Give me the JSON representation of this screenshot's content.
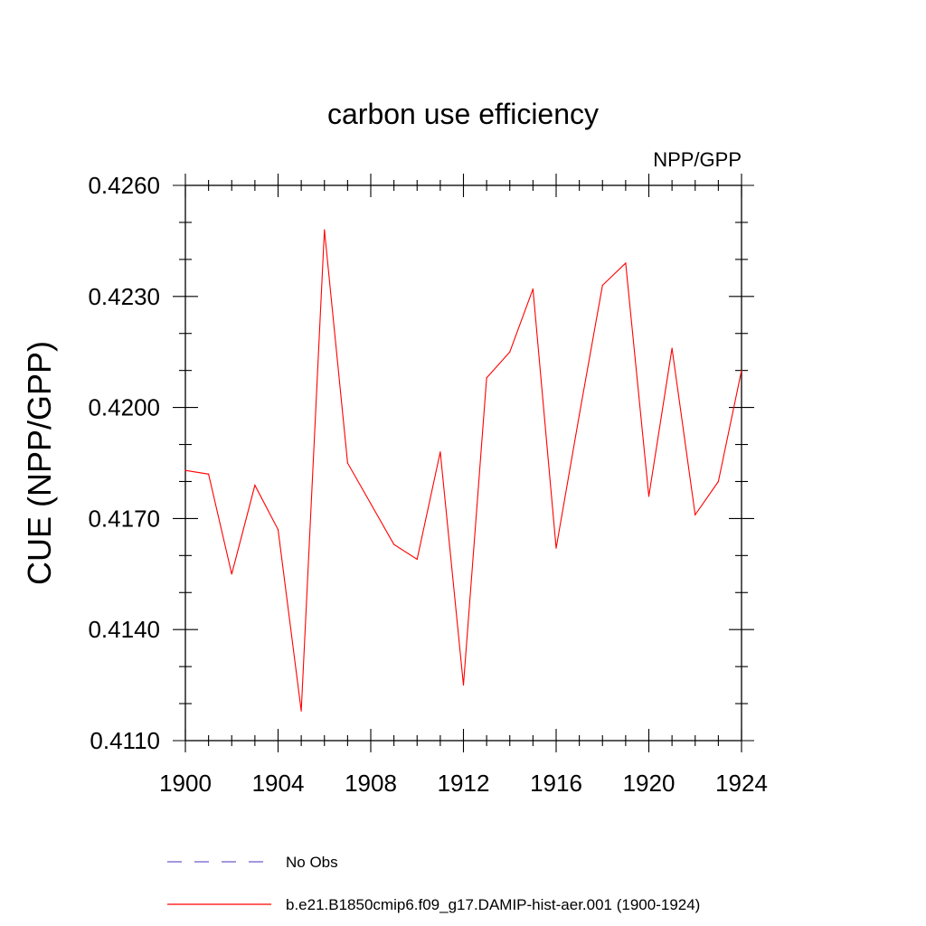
{
  "chart_data": {
    "type": "line",
    "title": "carbon use efficiency",
    "right_string": "NPP/GPP",
    "xlabel": "",
    "ylabel": "CUE  (NPP/GPP)",
    "xlim": [
      1900,
      1924
    ],
    "ylim": [
      0.411,
      0.426
    ],
    "x_ticks": [
      1900,
      1904,
      1908,
      1912,
      1916,
      1920,
      1924
    ],
    "x_tick_labels": [
      "1900",
      "1904",
      "1908",
      "1912",
      "1916",
      "1920",
      "1924"
    ],
    "y_ticks": [
      0.411,
      0.414,
      0.417,
      0.42,
      0.423,
      0.426
    ],
    "y_tick_labels": [
      "0.4110",
      "0.4140",
      "0.4170",
      "0.4200",
      "0.4230",
      "0.4260"
    ],
    "grid": false,
    "legend_position": "bottom",
    "series": [
      {
        "name": "b.e21.B1850cmip6.f09_g17.DAMIP-hist-aer.001 (1900-1924)",
        "color": "#ff0000",
        "style": "solid",
        "x": [
          1900,
          1901,
          1902,
          1903,
          1904,
          1905,
          1906,
          1907,
          1908,
          1909,
          1910,
          1911,
          1912,
          1913,
          1914,
          1915,
          1916,
          1917,
          1918,
          1919,
          1920,
          1921,
          1922,
          1923,
          1924
        ],
        "y": [
          0.4183,
          0.4182,
          0.4155,
          0.4179,
          0.4167,
          0.4118,
          0.4248,
          0.4185,
          0.4174,
          0.4163,
          0.4159,
          0.4188,
          0.4125,
          0.4208,
          0.4215,
          0.4232,
          0.4162,
          0.4198,
          0.4233,
          0.4239,
          0.4176,
          0.4216,
          0.4171,
          0.418,
          0.421
        ]
      }
    ],
    "legend": [
      {
        "label": "No Obs",
        "color": "#6a5acd",
        "style": "dashed"
      },
      {
        "label": "b.e21.B1850cmip6.f09_g17.DAMIP-hist-aer.001 (1900-1924)",
        "color": "#ff0000",
        "style": "solid"
      }
    ]
  }
}
